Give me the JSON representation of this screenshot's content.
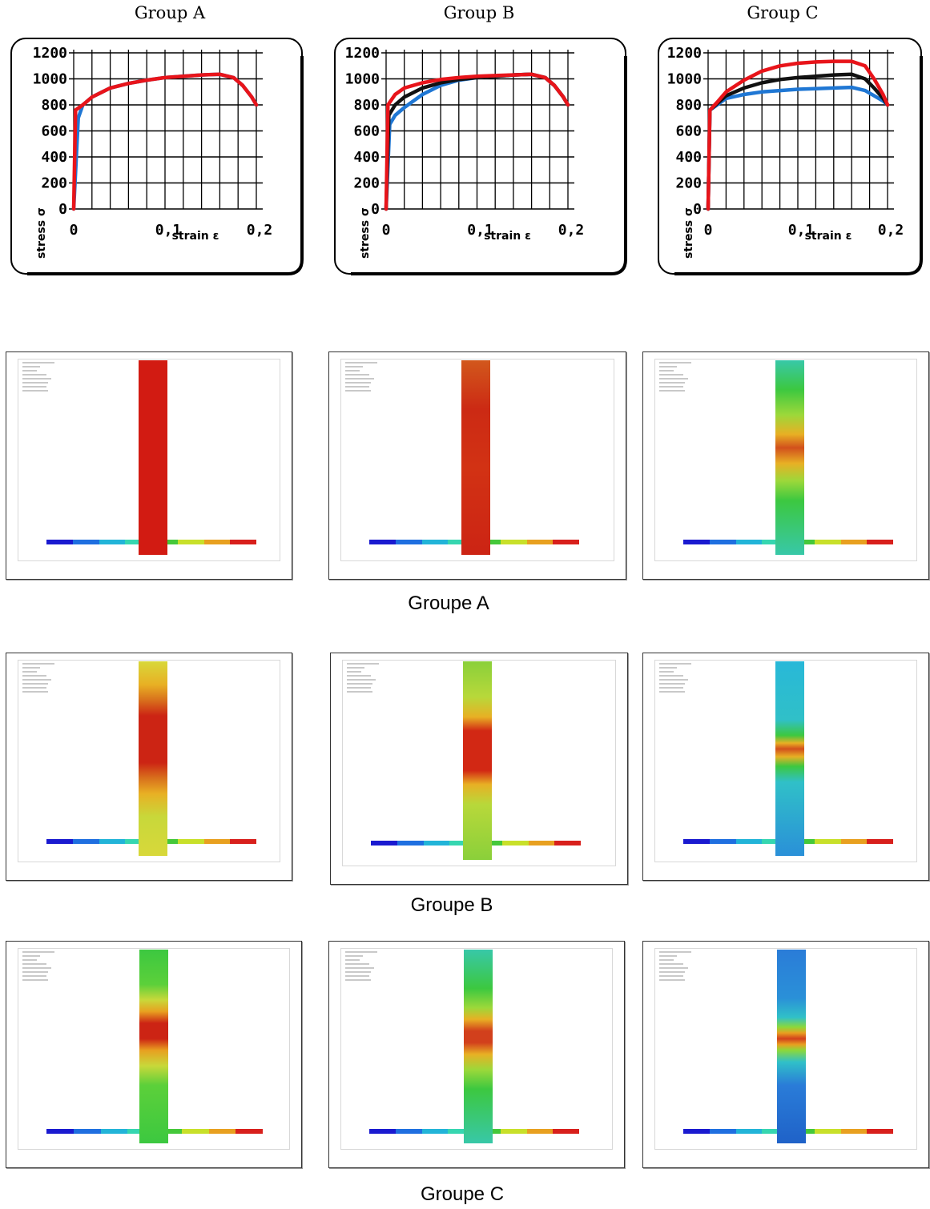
{
  "group_titles": [
    "Group A",
    "Group B",
    "Group C"
  ],
  "chart_data": [
    {
      "type": "line",
      "title": "Group A",
      "xlabel": "strain ε",
      "ylabel": "stress σ",
      "xlim": [
        0,
        0.2
      ],
      "ylim": [
        0,
        1200
      ],
      "xticks": [
        "0",
        "0,1",
        "0,2"
      ],
      "yticks": [
        "0",
        "200",
        "400",
        "600",
        "800",
        "1000",
        "1200"
      ],
      "grid": true,
      "series": [
        {
          "color": "#1f77d4",
          "x": [
            0,
            0.005,
            0.01,
            0.02,
            0.04,
            0.06,
            0.08,
            0.1,
            0.12,
            0.14,
            0.16,
            0.175,
            0.185,
            0.195,
            0.2
          ],
          "y": [
            0,
            700,
            800,
            860,
            930,
            965,
            990,
            1010,
            1020,
            1030,
            1035,
            1010,
            950,
            860,
            800
          ]
        },
        {
          "color": "#e8141a",
          "x": [
            0,
            0.002,
            0.01,
            0.02,
            0.04,
            0.06,
            0.08,
            0.1,
            0.12,
            0.14,
            0.16,
            0.175,
            0.185,
            0.195,
            0.2
          ],
          "y": [
            0,
            760,
            800,
            860,
            930,
            965,
            990,
            1010,
            1020,
            1030,
            1035,
            1010,
            950,
            860,
            800
          ]
        }
      ]
    },
    {
      "type": "line",
      "title": "Group B",
      "xlabel": "strain ε",
      "ylabel": "stress σ",
      "xlim": [
        0,
        0.2
      ],
      "ylim": [
        0,
        1200
      ],
      "xticks": [
        "0",
        "0,1",
        "0,2"
      ],
      "yticks": [
        "0",
        "200",
        "400",
        "600",
        "800",
        "1000",
        "1200"
      ],
      "grid": true,
      "series": [
        {
          "color": "#1f77d4",
          "x": [
            0,
            0.004,
            0.01,
            0.02,
            0.04,
            0.06,
            0.08,
            0.1,
            0.12,
            0.14,
            0.16,
            0.175,
            0.185,
            0.195,
            0.2
          ],
          "y": [
            0,
            650,
            720,
            780,
            880,
            950,
            990,
            1010,
            1020,
            1030,
            1035,
            1010,
            950,
            860,
            800
          ]
        },
        {
          "color": "#111111",
          "x": [
            0,
            0.003,
            0.01,
            0.02,
            0.04,
            0.06,
            0.08,
            0.1,
            0.12,
            0.14,
            0.16,
            0.175,
            0.185,
            0.195,
            0.2
          ],
          "y": [
            0,
            720,
            800,
            860,
            930,
            970,
            995,
            1010,
            1020,
            1030,
            1035,
            1010,
            950,
            860,
            800
          ]
        },
        {
          "color": "#e8141a",
          "x": [
            0,
            0.002,
            0.01,
            0.02,
            0.04,
            0.06,
            0.08,
            0.1,
            0.12,
            0.14,
            0.16,
            0.175,
            0.185,
            0.195,
            0.2
          ],
          "y": [
            0,
            800,
            880,
            930,
            970,
            995,
            1010,
            1020,
            1025,
            1030,
            1035,
            1010,
            950,
            860,
            800
          ]
        }
      ]
    },
    {
      "type": "line",
      "title": "Group C",
      "xlabel": "strain ε",
      "ylabel": "stress σ",
      "xlim": [
        0,
        0.2
      ],
      "ylim": [
        0,
        1200
      ],
      "xticks": [
        "0",
        "0,1",
        "0,2"
      ],
      "yticks": [
        "0",
        "200",
        "400",
        "600",
        "800",
        "1000",
        "1200"
      ],
      "grid": true,
      "series": [
        {
          "color": "#1f77d4",
          "x": [
            0,
            0.002,
            0.01,
            0.02,
            0.04,
            0.06,
            0.08,
            0.1,
            0.12,
            0.14,
            0.16,
            0.175,
            0.185,
            0.195,
            0.2
          ],
          "y": [
            0,
            760,
            800,
            850,
            880,
            900,
            910,
            920,
            925,
            930,
            935,
            910,
            870,
            830,
            800
          ]
        },
        {
          "color": "#111111",
          "x": [
            0,
            0.002,
            0.01,
            0.02,
            0.04,
            0.06,
            0.08,
            0.1,
            0.12,
            0.14,
            0.16,
            0.175,
            0.185,
            0.195,
            0.2
          ],
          "y": [
            0,
            760,
            810,
            870,
            930,
            970,
            995,
            1010,
            1020,
            1030,
            1035,
            1000,
            930,
            850,
            800
          ]
        },
        {
          "color": "#e8141a",
          "x": [
            0,
            0.002,
            0.01,
            0.02,
            0.04,
            0.06,
            0.08,
            0.1,
            0.12,
            0.14,
            0.16,
            0.175,
            0.185,
            0.195,
            0.2
          ],
          "y": [
            0,
            760,
            820,
            900,
            990,
            1060,
            1100,
            1120,
            1130,
            1135,
            1135,
            1100,
            1000,
            880,
            800
          ]
        }
      ]
    }
  ],
  "row_labels": [
    "Groupe A",
    "Groupe B",
    "Groupe C"
  ],
  "colors": {
    "blue": "#1f77d4",
    "black": "#111111",
    "red": "#e8141a"
  }
}
